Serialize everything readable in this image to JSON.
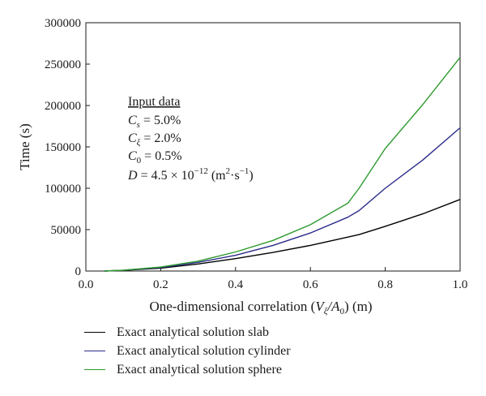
{
  "chart_data": {
    "type": "line",
    "xlabel": "One-dimensional correlation (Vξ/A0) (m)",
    "ylabel": "Time (s)",
    "xlim": [
      0.0,
      1.0
    ],
    "ylim": [
      0,
      300000
    ],
    "x_ticks": [
      "0.0",
      "0.2",
      "0.4",
      "0.6",
      "0.8",
      "1.0"
    ],
    "y_ticks": [
      "0",
      "50000",
      "100000",
      "150000",
      "200000",
      "250000",
      "300000"
    ],
    "annotation": {
      "heading": "Input data",
      "lines": [
        "Cs = 5.0%",
        "Cξ = 2.0%",
        "C0 = 0.5%",
        "D = 4.5 × 10−12 (m2·s−1)"
      ]
    },
    "legend_position": "bottom",
    "x": [
      0.05,
      0.1,
      0.2,
      0.3,
      0.4,
      0.5,
      0.6,
      0.7,
      0.73,
      0.8,
      0.9,
      1.0
    ],
    "series": [
      {
        "name": "Exact analytical solution slab",
        "color": "#000000",
        "values": [
          0,
          800,
          3500,
          8500,
          15000,
          22500,
          31000,
          41000,
          44000,
          54000,
          69000,
          86500
        ]
      },
      {
        "name": "Exact analytical solution cylinder",
        "color": "#2b2b8c",
        "values": [
          0,
          900,
          4200,
          10500,
          19000,
          31000,
          46000,
          65000,
          73000,
          100000,
          134000,
          173000
        ]
      },
      {
        "name": "Exact analytical solution sphere",
        "color": "#2e9a2e",
        "values": [
          0,
          1000,
          4800,
          12000,
          23000,
          37000,
          56000,
          82000,
          100000,
          148000,
          201000,
          258000
        ]
      }
    ]
  }
}
